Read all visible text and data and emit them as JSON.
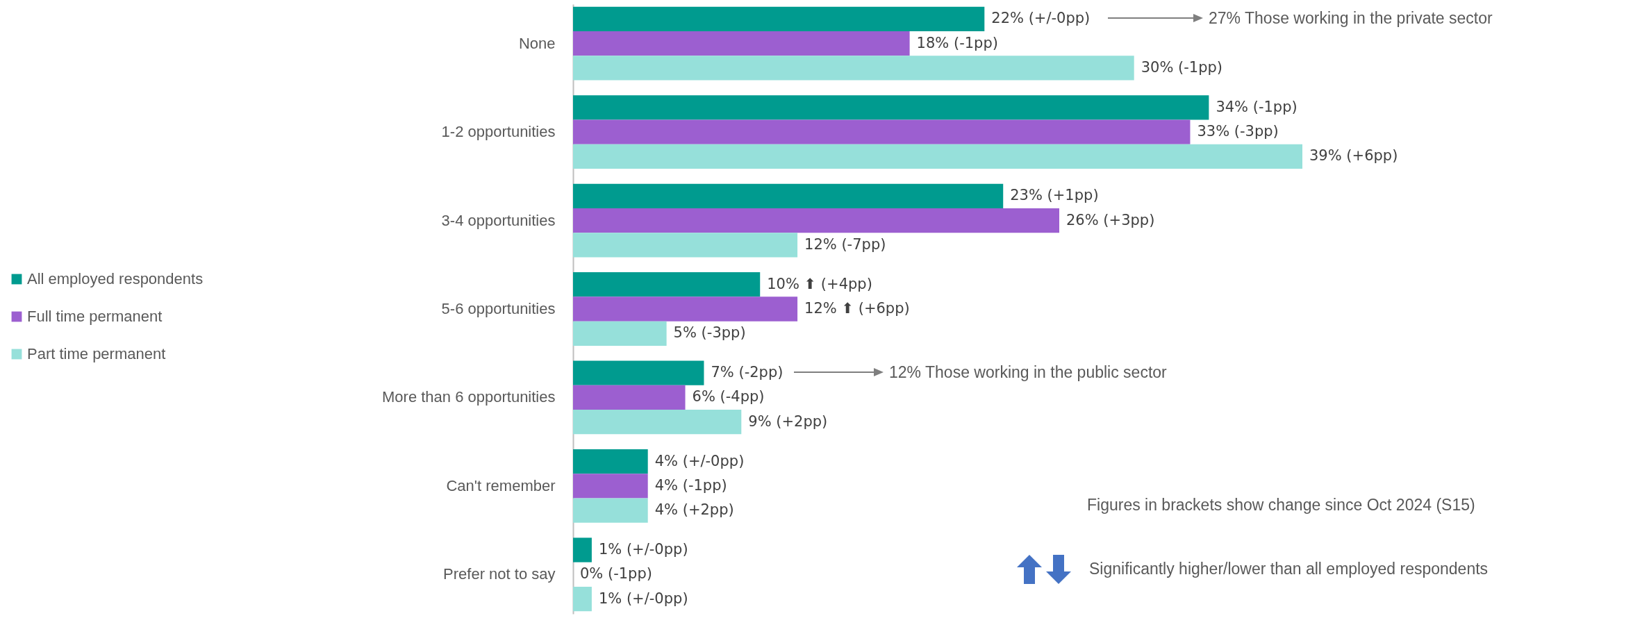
{
  "chart_data": {
    "type": "bar",
    "orientation": "horizontal",
    "legend": "left",
    "categories": [
      "None",
      "1-2 opportunities",
      "3-4 opportunities",
      "5-6 opportunities",
      "More than 6 opportunities",
      "Can't remember",
      "Prefer not to say"
    ],
    "series": [
      {
        "name": "All employed respondents",
        "color": "#009b8f",
        "values": [
          22,
          34,
          23,
          10,
          7,
          4,
          1
        ],
        "value_labels": [
          "22% (+/-0pp)",
          "34% (-1pp)",
          "23% (+1pp)",
          "10% ⬆ (+4pp)",
          "7% (-2pp)",
          "4% (+/-0pp)",
          "1% (+/-0pp)"
        ]
      },
      {
        "name": "Full time permanent",
        "color": "#9c5fd0",
        "values": [
          18,
          33,
          26,
          12,
          6,
          4,
          0
        ],
        "value_labels": [
          "18% (-1pp)",
          "33% (-3pp)",
          "26% (+3pp)",
          "12% ⬆ (+6pp)",
          "6% (-4pp)",
          "4% (-1pp)",
          "0% (-1pp)"
        ]
      },
      {
        "name": "Part time permanent",
        "color": "#96e0da",
        "values": [
          30,
          39,
          12,
          5,
          9,
          4,
          1
        ],
        "value_labels": [
          "30% (-1pp)",
          "39% (+6pp)",
          "12% (-7pp)",
          "5% (-3pp)",
          "9% (+2pp)",
          "4% (+2pp)",
          "1% (+/-0pp)"
        ]
      }
    ],
    "annotations": [
      "27% Those working in the private sector",
      "12% Those working in the public sector",
      "Figures in brackets show change since Oct 2024 (S15)",
      "Significantly higher/lower than all employed respondents"
    ]
  }
}
